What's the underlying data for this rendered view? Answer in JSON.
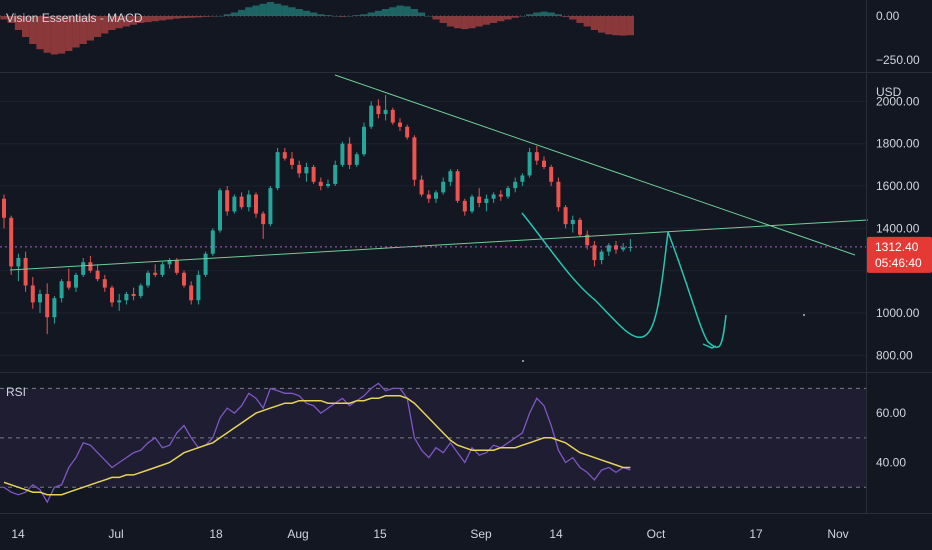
{
  "macd_title": "Vision Essentials - MACD",
  "rsi_title": "RSI",
  "currency": "USD",
  "last_price": "1312.40",
  "countdown": "05:46:40",
  "colors": {
    "background": "#131722",
    "up": "#26a69a",
    "down": "#ef5350",
    "rsi_line": "#7e57c2",
    "rsi_ma": "#e6d45a",
    "rsi_band": "rgba(126,87,194,0.10)",
    "trend": "#6fcf97",
    "drawing": "#26c6b0",
    "price_line": "#b05cc8",
    "price_tag": "#e53935",
    "grid": "#1e2230"
  },
  "chart_data": [
    {
      "type": "candlestick",
      "currency": "USD",
      "y_ticks": [
        800,
        1000,
        1200,
        1400,
        1600,
        1800,
        2000
      ],
      "y_tick_labels": [
        "800.00",
        "1000.00",
        "",
        "1400.00",
        "1600.00",
        "1800.00",
        "2000.00"
      ],
      "ylim": [
        740,
        2120
      ],
      "x_ticks": [
        "14",
        "Jul",
        "18",
        "Aug",
        "15",
        "Sep",
        "14",
        "Oct",
        "17",
        "Nov"
      ],
      "last_price": 1312.4,
      "candles": [
        [
          1540,
          1560,
          1400,
          1450
        ],
        [
          1450,
          1460,
          1180,
          1220
        ],
        [
          1220,
          1280,
          1150,
          1260
        ],
        [
          1260,
          1290,
          1100,
          1130
        ],
        [
          1130,
          1170,
          1020,
          1050
        ],
        [
          1050,
          1110,
          1000,
          1090
        ],
        [
          1090,
          1140,
          900,
          980
        ],
        [
          980,
          1080,
          950,
          1070
        ],
        [
          1070,
          1160,
          1050,
          1150
        ],
        [
          1150,
          1210,
          1110,
          1120
        ],
        [
          1120,
          1190,
          1100,
          1180
        ],
        [
          1180,
          1260,
          1170,
          1240
        ],
        [
          1240,
          1270,
          1190,
          1200
        ],
        [
          1200,
          1230,
          1150,
          1160
        ],
        [
          1160,
          1180,
          1100,
          1120
        ],
        [
          1120,
          1130,
          1030,
          1050
        ],
        [
          1050,
          1090,
          1010,
          1060
        ],
        [
          1060,
          1100,
          1040,
          1090
        ],
        [
          1090,
          1120,
          1060,
          1080
        ],
        [
          1080,
          1140,
          1070,
          1130
        ],
        [
          1130,
          1200,
          1120,
          1190
        ],
        [
          1190,
          1230,
          1170,
          1180
        ],
        [
          1180,
          1240,
          1170,
          1230
        ],
        [
          1230,
          1260,
          1210,
          1250
        ],
        [
          1250,
          1260,
          1180,
          1190
        ],
        [
          1190,
          1200,
          1120,
          1130
        ],
        [
          1130,
          1150,
          1040,
          1060
        ],
        [
          1060,
          1200,
          1040,
          1180
        ],
        [
          1180,
          1290,
          1170,
          1280
        ],
        [
          1280,
          1400,
          1270,
          1390
        ],
        [
          1390,
          1590,
          1380,
          1580
        ],
        [
          1580,
          1600,
          1460,
          1480
        ],
        [
          1480,
          1560,
          1470,
          1550
        ],
        [
          1550,
          1570,
          1490,
          1500
        ],
        [
          1500,
          1580,
          1480,
          1560
        ],
        [
          1560,
          1570,
          1450,
          1470
        ],
        [
          1470,
          1480,
          1350,
          1420
        ],
        [
          1420,
          1600,
          1410,
          1590
        ],
        [
          1590,
          1780,
          1580,
          1760
        ],
        [
          1760,
          1780,
          1720,
          1730
        ],
        [
          1730,
          1760,
          1680,
          1700
        ],
        [
          1700,
          1720,
          1640,
          1660
        ],
        [
          1660,
          1710,
          1620,
          1690
        ],
        [
          1690,
          1700,
          1610,
          1620
        ],
        [
          1620,
          1640,
          1580,
          1600
        ],
        [
          1600,
          1630,
          1590,
          1610
        ],
        [
          1610,
          1720,
          1600,
          1700
        ],
        [
          1700,
          1810,
          1690,
          1800
        ],
        [
          1800,
          1830,
          1680,
          1700
        ],
        [
          1700,
          1760,
          1690,
          1750
        ],
        [
          1750,
          1900,
          1740,
          1880
        ],
        [
          1880,
          2000,
          1870,
          1980
        ],
        [
          1980,
          2010,
          1920,
          1940
        ],
        [
          1940,
          2030,
          1910,
          1960
        ],
        [
          1960,
          1970,
          1890,
          1900
        ],
        [
          1900,
          1920,
          1860,
          1880
        ],
        [
          1880,
          1890,
          1820,
          1830
        ],
        [
          1830,
          1840,
          1600,
          1630
        ],
        [
          1630,
          1650,
          1550,
          1560
        ],
        [
          1560,
          1580,
          1520,
          1540
        ],
        [
          1540,
          1580,
          1520,
          1570
        ],
        [
          1570,
          1640,
          1560,
          1620
        ],
        [
          1620,
          1680,
          1600,
          1670
        ],
        [
          1670,
          1680,
          1520,
          1530
        ],
        [
          1530,
          1540,
          1460,
          1480
        ],
        [
          1480,
          1560,
          1470,
          1550
        ],
        [
          1550,
          1590,
          1500,
          1520
        ],
        [
          1520,
          1560,
          1480,
          1540
        ],
        [
          1540,
          1570,
          1520,
          1560
        ],
        [
          1560,
          1580,
          1530,
          1550
        ],
        [
          1550,
          1600,
          1540,
          1590
        ],
        [
          1590,
          1640,
          1570,
          1620
        ],
        [
          1620,
          1660,
          1600,
          1650
        ],
        [
          1650,
          1780,
          1640,
          1760
        ],
        [
          1760,
          1790,
          1700,
          1720
        ],
        [
          1720,
          1740,
          1680,
          1690
        ],
        [
          1690,
          1700,
          1600,
          1620
        ],
        [
          1620,
          1640,
          1480,
          1500
        ],
        [
          1500,
          1510,
          1400,
          1420
        ],
        [
          1420,
          1460,
          1380,
          1440
        ],
        [
          1440,
          1450,
          1360,
          1370
        ],
        [
          1370,
          1390,
          1300,
          1320
        ],
        [
          1320,
          1340,
          1220,
          1250
        ],
        [
          1250,
          1300,
          1230,
          1290
        ],
        [
          1290,
          1330,
          1270,
          1320
        ],
        [
          1320,
          1340,
          1280,
          1300
        ],
        [
          1300,
          1330,
          1290,
          1310
        ],
        [
          1310,
          1350,
          1290,
          1312
        ]
      ]
    },
    {
      "type": "line",
      "name": "RSI",
      "y_ticks": [
        40,
        60
      ],
      "y_tick_labels": [
        "40.00",
        "60.00"
      ],
      "bands": [
        30,
        50,
        70
      ],
      "ylim": [
        20,
        75
      ],
      "series": [
        {
          "values": [
            30,
            28,
            27,
            28,
            31,
            29,
            24,
            30,
            31,
            38,
            42,
            48,
            47,
            44,
            41,
            38,
            40,
            42,
            44,
            45,
            48,
            50,
            46,
            47,
            52,
            55,
            50,
            46,
            47,
            50,
            58,
            62,
            60,
            63,
            68,
            66,
            62,
            70,
            69,
            68,
            68,
            67,
            64,
            63,
            60,
            62,
            64,
            66,
            63,
            65,
            67,
            70,
            72,
            69,
            70,
            70,
            66,
            50,
            45,
            42,
            46,
            44,
            48,
            44,
            40,
            46,
            43,
            44,
            47,
            46,
            48,
            50,
            52,
            60,
            66,
            63,
            55,
            45,
            40,
            42,
            38,
            36,
            33,
            37,
            38,
            36,
            38,
            37
          ]
        },
        {
          "values": [
            32,
            31,
            30,
            29,
            28,
            28,
            27,
            27,
            27,
            28,
            29,
            30,
            31,
            32,
            33,
            34,
            34,
            35,
            35,
            36,
            37,
            38,
            39,
            40,
            42,
            44,
            45,
            46,
            47,
            48,
            50,
            52,
            54,
            56,
            58,
            60,
            61,
            62,
            63,
            64,
            64,
            65,
            65,
            65,
            65,
            64,
            64,
            64,
            64,
            65,
            65,
            66,
            66,
            67,
            67,
            67,
            66,
            64,
            61,
            58,
            55,
            52,
            49,
            47,
            46,
            45,
            45,
            45,
            45,
            46,
            46,
            46,
            47,
            48,
            49,
            50,
            50,
            49,
            48,
            46,
            44,
            43,
            42,
            41,
            40,
            39,
            38,
            38
          ]
        }
      ]
    },
    {
      "type": "histogram",
      "name": "MACD",
      "y_ticks": [
        -250,
        0
      ],
      "y_tick_labels": [
        "−250.00",
        "0.00"
      ],
      "ylim": [
        -320,
        80
      ],
      "values": [
        -20,
        -40,
        -80,
        -120,
        -160,
        -190,
        -210,
        -220,
        -215,
        -200,
        -180,
        -160,
        -140,
        -120,
        -100,
        -80,
        -70,
        -60,
        -50,
        -40,
        -35,
        -30,
        -25,
        -20,
        -15,
        -12,
        -10,
        -8,
        -5,
        -3,
        0,
        10,
        20,
        35,
        50,
        60,
        70,
        80,
        70,
        60,
        50,
        40,
        30,
        20,
        10,
        5,
        0,
        -5,
        0,
        5,
        10,
        20,
        30,
        40,
        50,
        60,
        55,
        40,
        20,
        0,
        -20,
        -40,
        -60,
        -70,
        -75,
        -70,
        -60,
        -50,
        -40,
        -30,
        -20,
        -10,
        0,
        10,
        20,
        25,
        20,
        10,
        -5,
        -20,
        -40,
        -60,
        -80,
        -95,
        -105,
        -110,
        -112,
        -110
      ]
    }
  ]
}
